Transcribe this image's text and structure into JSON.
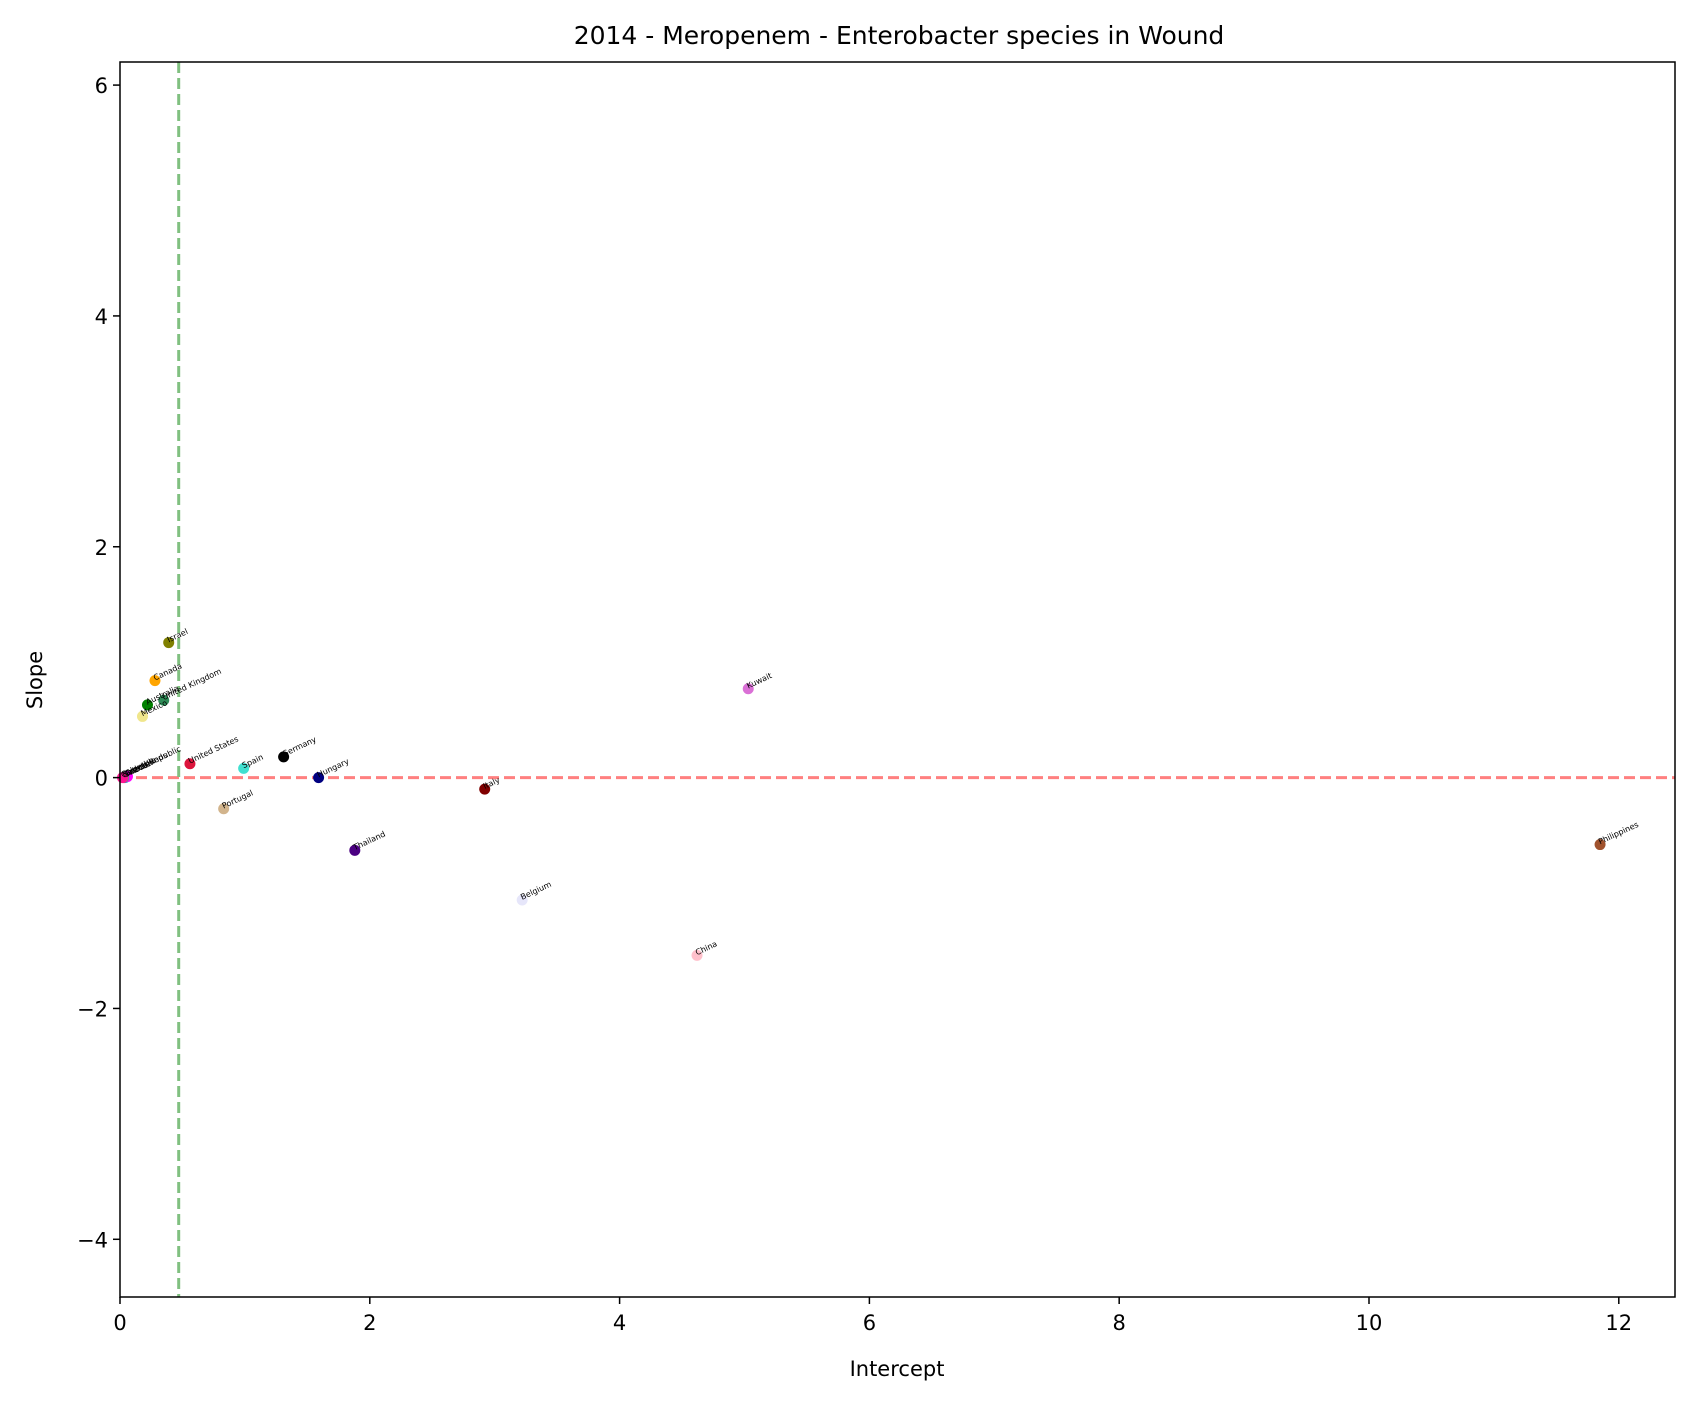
{
  "chart_data": {
    "type": "scatter",
    "title": "2014 - Meropenem - Enterobacter species in Wound",
    "xlabel": "Intercept",
    "ylabel": "Slope",
    "xlim": [
      0,
      12.45
    ],
    "ylim": [
      -4.5,
      6.2
    ],
    "xticks": [
      0,
      2,
      4,
      6,
      8,
      10,
      12
    ],
    "yticks": [
      -4,
      -2,
      0,
      2,
      4,
      6
    ],
    "ytick_labels": [
      "−4",
      "−2",
      "0",
      "2",
      "4",
      "6"
    ],
    "grid": false,
    "reference_lines": [
      {
        "orientation": "horizontal",
        "value": 0,
        "color": "#ff8080",
        "style": "dashed"
      },
      {
        "orientation": "vertical",
        "value": 0.47,
        "color": "#80c080",
        "style": "dashed"
      }
    ],
    "points": [
      {
        "label": "Israel",
        "x": 0.39,
        "y": 1.17,
        "color": "#808000"
      },
      {
        "label": "Canada",
        "x": 0.28,
        "y": 0.84,
        "color": "#ffa500"
      },
      {
        "label": "Australia",
        "x": 0.22,
        "y": 0.63,
        "color": "#008000"
      },
      {
        "label": "United Kingdom",
        "x": 0.35,
        "y": 0.67,
        "color": "#2e8b57"
      },
      {
        "label": "Mexico",
        "x": 0.18,
        "y": 0.53,
        "color": "#f0e68c"
      },
      {
        "label": "Czech Republic",
        "x": 0.05,
        "y": 0.01,
        "color": "#000000"
      },
      {
        "label": "Sweden",
        "x": 0.04,
        "y": 0.0,
        "color": "#1e90ff"
      },
      {
        "label": "France",
        "x": 0.06,
        "y": 0.01,
        "color": "#ff00ff"
      },
      {
        "label": "Netherlands",
        "x": 0.03,
        "y": 0.0,
        "color": "#808080"
      },
      {
        "label": "Colombia",
        "x": 0.02,
        "y": 0.0,
        "color": "#ff1493"
      },
      {
        "label": "United States",
        "x": 0.56,
        "y": 0.12,
        "color": "#dc143c"
      },
      {
        "label": "Spain",
        "x": 0.99,
        "y": 0.08,
        "color": "#40e0d0"
      },
      {
        "label": "Germany",
        "x": 1.31,
        "y": 0.18,
        "color": "#000000"
      },
      {
        "label": "Hungary",
        "x": 1.59,
        "y": 0.0,
        "color": "#000080"
      },
      {
        "label": "Portugal",
        "x": 0.83,
        "y": -0.27,
        "color": "#d2b48c"
      },
      {
        "label": "Thailand",
        "x": 1.88,
        "y": -0.63,
        "color": "#4b0082"
      },
      {
        "label": "Italy",
        "x": 2.92,
        "y": -0.1,
        "color": "#800000"
      },
      {
        "label": "Belgium",
        "x": 3.22,
        "y": -1.06,
        "color": "#e6e6fa"
      },
      {
        "label": "China",
        "x": 4.62,
        "y": -1.54,
        "color": "#ffc0cb"
      },
      {
        "label": "Kuwait",
        "x": 5.03,
        "y": 0.77,
        "color": "#da70d6"
      },
      {
        "label": "Philippines",
        "x": 11.85,
        "y": -0.58,
        "color": "#a0522d"
      }
    ]
  }
}
